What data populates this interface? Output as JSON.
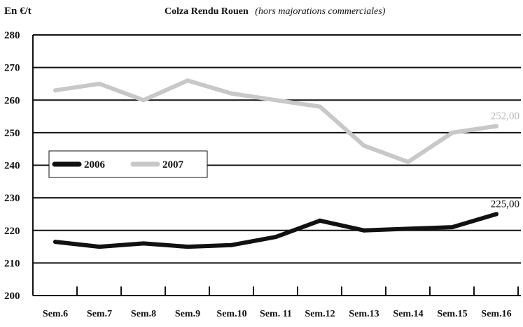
{
  "chart_data": {
    "type": "line",
    "title": "Colza Rendu Rouen",
    "subtitle": "(hors majorations commerciales)",
    "ylabel": "En €/t",
    "xlabel": "",
    "categories": [
      "Sem.6",
      "Sem.7",
      "Sem.8",
      "Sem.9",
      "Sem.10",
      "Sem. 11",
      "Sem.12",
      "Sem.13",
      "Sem.14",
      "Sem.15",
      "Sem.16"
    ],
    "ylim": [
      200,
      280
    ],
    "yticks": [
      200,
      210,
      220,
      230,
      240,
      250,
      260,
      270,
      280
    ],
    "grid": "horizontal",
    "legend_position": "middle-left",
    "series": [
      {
        "name": "2006",
        "color": "#111111",
        "values": [
          216.5,
          215,
          216,
          215,
          215.5,
          218,
          223,
          220,
          220.5,
          221,
          225
        ],
        "end_label": "225,00"
      },
      {
        "name": "2007",
        "color": "#c8c8c8",
        "values": [
          263,
          265,
          260,
          266,
          262,
          260,
          258,
          246,
          241,
          250,
          252
        ],
        "end_label": "252,00"
      }
    ]
  }
}
